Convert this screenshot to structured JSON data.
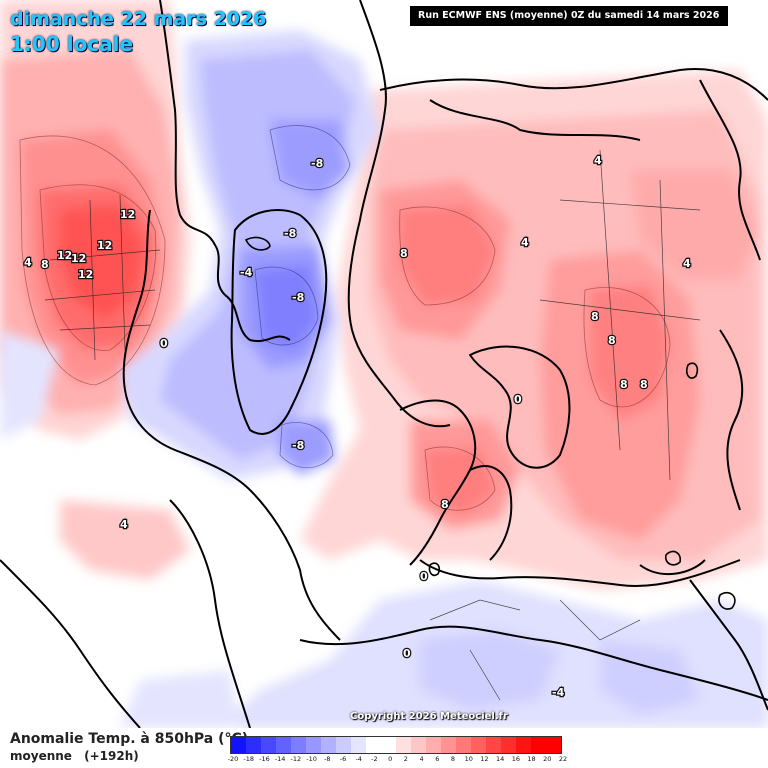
{
  "header": {
    "date_line": "dimanche 22 mars 2026",
    "time_line": "1:00 locale",
    "run_info": "Run ECMWF ENS (moyenne) 0Z du samedi 14 mars 2026"
  },
  "copyright": "Copyright 2026 Meteociel.fr",
  "legend": {
    "title": "Anomalie Temp. à 850hPa (°C)",
    "subtitle_type": "moyenne",
    "subtitle_lead": "(+192h)",
    "colors": [
      "#1212ff",
      "#2d2dff",
      "#4848ff",
      "#6262ff",
      "#7d7dff",
      "#9797ff",
      "#b1b1ff",
      "#cbcbff",
      "#e5e5ff",
      "#ffffff",
      "#ffffff",
      "#ffe0e0",
      "#ffc6c6",
      "#ffadad",
      "#ff9393",
      "#ff7979",
      "#ff6060",
      "#ff4646",
      "#ff2d2d",
      "#ff1414",
      "#ff0000",
      "#ff0000"
    ],
    "ticks": [
      "-20",
      "-18",
      "-16",
      "-14",
      "-12",
      "-10",
      "-8",
      "-6",
      "-4",
      "-2",
      "0",
      "2",
      "4",
      "6",
      "8",
      "10",
      "12",
      "14",
      "16",
      "18",
      "20",
      "22"
    ]
  },
  "contour_labels": [
    "12",
    "12",
    "12",
    "12",
    "12",
    "8",
    "4",
    "0",
    "-4",
    "-8",
    "-8",
    "-8",
    "-8",
    "8",
    "4",
    "8",
    "8",
    "8",
    "8",
    "4",
    "0",
    "-4",
    "4",
    "0",
    "4",
    "8",
    "0"
  ],
  "colors": {
    "title": "#1ec8ff",
    "warm": "#ff6060",
    "cold": "#7d7dff",
    "coast": "#000000"
  }
}
